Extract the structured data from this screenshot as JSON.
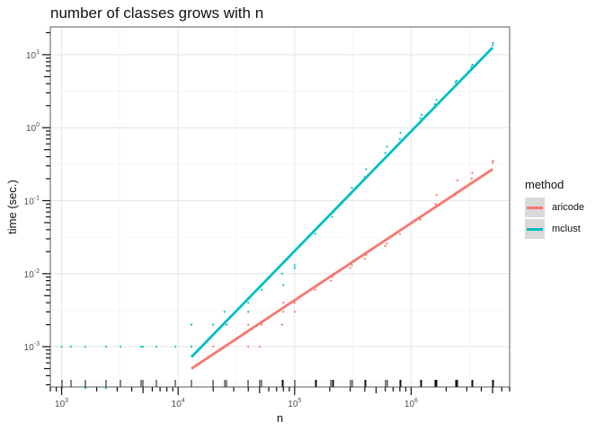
{
  "chart_data": {
    "type": "scatter",
    "title": "number of classes grows with n",
    "xlabel": "n",
    "ylabel": "time (sec.)",
    "x_scale": "log10",
    "y_scale": "log10",
    "xlim": [
      800,
      7000000
    ],
    "ylim": [
      0.00028,
      24
    ],
    "x_ticks": [
      {
        "value": 1000,
        "base": "10",
        "exp": "3"
      },
      {
        "value": 10000,
        "base": "10",
        "exp": "4"
      },
      {
        "value": 100000,
        "base": "10",
        "exp": "5"
      },
      {
        "value": 1000000,
        "base": "10",
        "exp": "6"
      }
    ],
    "y_ticks": [
      {
        "value": 0.001,
        "base": "10",
        "exp": "-3"
      },
      {
        "value": 0.01,
        "base": "10",
        "exp": "-2"
      },
      {
        "value": 0.1,
        "base": "10",
        "exp": "-1"
      },
      {
        "value": 1,
        "base": "10",
        "exp": "0"
      },
      {
        "value": 10,
        "base": "10",
        "exp": "1"
      }
    ],
    "grid": true,
    "legend": {
      "title": "method",
      "position": "right"
    },
    "series": [
      {
        "name": "aricode",
        "color": "#F8766D",
        "points": [
          [
            13000,
            0.001
          ],
          [
            20000,
            0.001
          ],
          [
            25000,
            0.001
          ],
          [
            26000,
            0.002
          ],
          [
            40000,
            0.001
          ],
          [
            40000,
            0.002
          ],
          [
            50000,
            0.001
          ],
          [
            52000,
            0.002
          ],
          [
            78000,
            0.002
          ],
          [
            80000,
            0.003
          ],
          [
            80000,
            0.004
          ],
          [
            100000,
            0.003
          ],
          [
            100000,
            0.004
          ],
          [
            150000,
            0.006
          ],
          [
            155000,
            0.007
          ],
          [
            205000,
            0.008
          ],
          [
            210000,
            0.009
          ],
          [
            300000,
            0.012
          ],
          [
            310000,
            0.013
          ],
          [
            400000,
            0.016
          ],
          [
            410000,
            0.018
          ],
          [
            600000,
            0.024
          ],
          [
            620000,
            0.026
          ],
          [
            800000,
            0.035
          ],
          [
            810000,
            0.04
          ],
          [
            1200000,
            0.055
          ],
          [
            1230000,
            0.06
          ],
          [
            1600000,
            0.08
          ],
          [
            1620000,
            0.09
          ],
          [
            1650000,
            0.12
          ],
          [
            2400000,
            0.12
          ],
          [
            2450000,
            0.13
          ],
          [
            2500000,
            0.19
          ],
          [
            3300000,
            0.2
          ],
          [
            3350000,
            0.24
          ],
          [
            5000000,
            0.33
          ],
          [
            5050000,
            0.35
          ]
        ],
        "fit": {
          "x": [
            13000,
            5000000
          ],
          "y": [
            0.0005,
            0.27
          ]
        }
      },
      {
        "name": "mclust",
        "color": "#00BFC4",
        "points": [
          [
            1000,
            0.001
          ],
          [
            1000,
            0.00027
          ],
          [
            1200,
            0.001
          ],
          [
            1600,
            0.001
          ],
          [
            1600,
            0.00027
          ],
          [
            2400,
            0.001
          ],
          [
            2400,
            0.00027
          ],
          [
            3200,
            0.001
          ],
          [
            4800,
            0.001
          ],
          [
            5000,
            0.001
          ],
          [
            6500,
            0.001
          ],
          [
            9500,
            0.001
          ],
          [
            13000,
            0.002
          ],
          [
            13000,
            0.001
          ],
          [
            20000,
            0.002
          ],
          [
            25000,
            0.003
          ],
          [
            26000,
            0.002
          ],
          [
            40000,
            0.004
          ],
          [
            40000,
            0.003
          ],
          [
            52000,
            0.006
          ],
          [
            78000,
            0.01
          ],
          [
            80000,
            0.007
          ],
          [
            100000,
            0.012
          ],
          [
            100000,
            0.013
          ],
          [
            150000,
            0.035
          ],
          [
            210000,
            0.06
          ],
          [
            215000,
            0.07
          ],
          [
            300000,
            0.12
          ],
          [
            310000,
            0.15
          ],
          [
            400000,
            0.21
          ],
          [
            410000,
            0.27
          ],
          [
            600000,
            0.45
          ],
          [
            620000,
            0.55
          ],
          [
            800000,
            0.7
          ],
          [
            810000,
            0.85
          ],
          [
            1200000,
            1.35
          ],
          [
            1230000,
            1.5
          ],
          [
            1600000,
            2.1
          ],
          [
            1650000,
            2.4
          ],
          [
            2400000,
            4.2
          ],
          [
            2450000,
            4.4
          ],
          [
            3300000,
            6.8
          ],
          [
            3350000,
            7.3
          ],
          [
            5000000,
            13.5
          ],
          [
            5050000,
            14.5
          ]
        ],
        "fit": {
          "x": [
            13000,
            5000000
          ],
          "y": [
            0.00072,
            12.5
          ]
        }
      }
    ]
  }
}
